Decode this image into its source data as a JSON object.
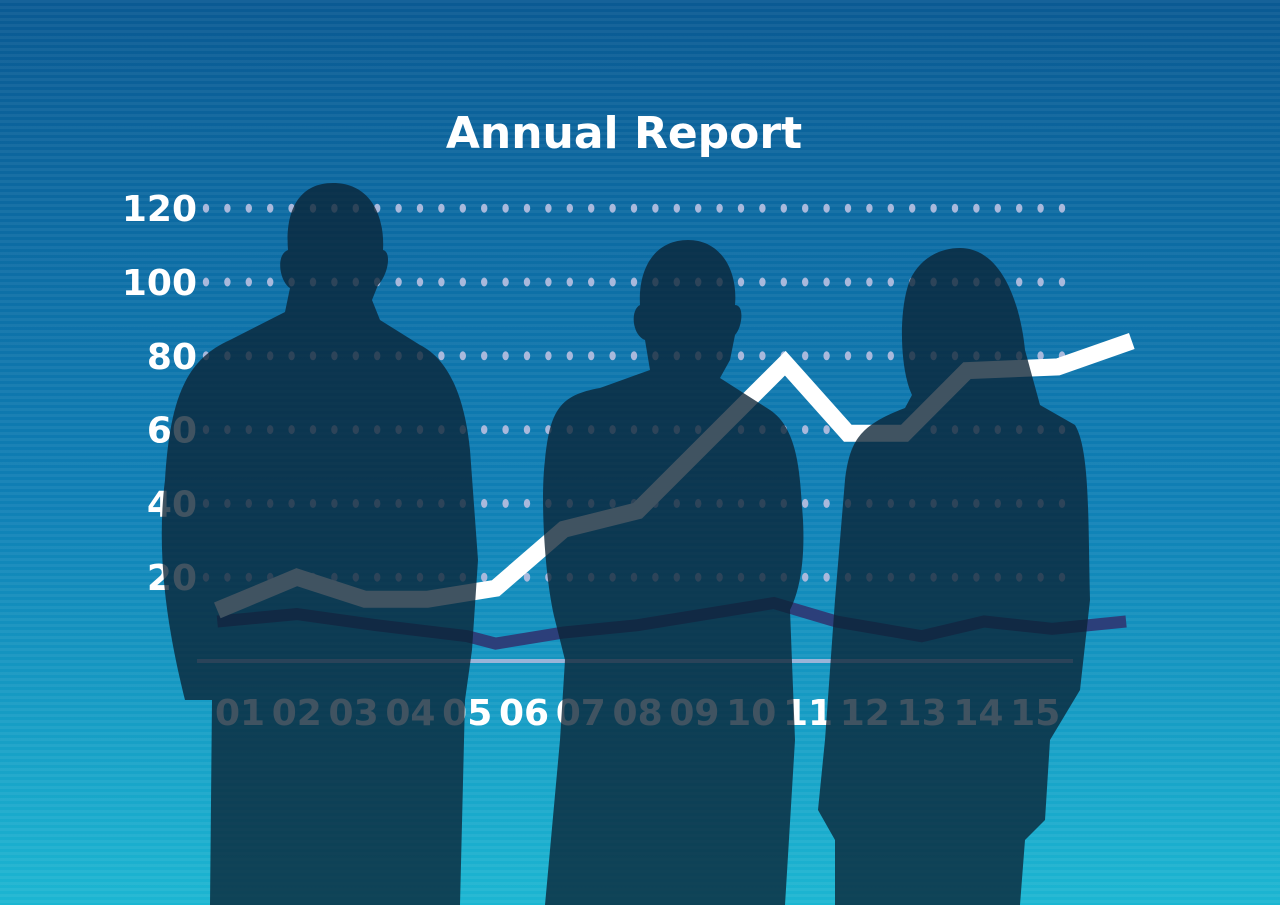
{
  "chart_data": {
    "type": "line",
    "title": "Annual Report",
    "categories": [
      "01",
      "02",
      "03",
      "04",
      "05",
      "06",
      "07",
      "08",
      "09",
      "10",
      "11",
      "12",
      "13",
      "14",
      "15"
    ],
    "yticks": [
      "20",
      "40",
      "60",
      "80",
      "100",
      "120"
    ],
    "ylim": [
      0,
      120
    ],
    "grid": "dotted horizontal",
    "series": [
      {
        "color": "#ffffff",
        "points": [
          [
            0.6,
            11
          ],
          [
            2,
            20
          ],
          [
            3.2,
            14
          ],
          [
            4.3,
            14
          ],
          [
            5.5,
            17
          ],
          [
            6.7,
            33
          ],
          [
            8,
            38
          ],
          [
            10.6,
            78
          ],
          [
            11.7,
            59
          ],
          [
            12.7,
            59
          ],
          [
            13.8,
            76
          ],
          [
            15.4,
            77
          ],
          [
            16.7,
            84
          ]
        ]
      },
      {
        "color": "#2c3f7a",
        "points": [
          [
            0.6,
            8
          ],
          [
            2,
            10
          ],
          [
            3.4,
            7
          ],
          [
            5,
            4
          ],
          [
            5.5,
            2
          ],
          [
            6.7,
            5
          ],
          [
            8,
            7
          ],
          [
            10.4,
            13
          ],
          [
            11.5,
            8
          ],
          [
            13,
            4
          ],
          [
            14.1,
            8
          ],
          [
            15.3,
            6
          ],
          [
            16.6,
            8
          ]
        ]
      }
    ]
  },
  "colors": {
    "bg_top": "#0a5a93",
    "bg_bottom": "#1cb6d2",
    "silhouette": "#0a2235"
  }
}
